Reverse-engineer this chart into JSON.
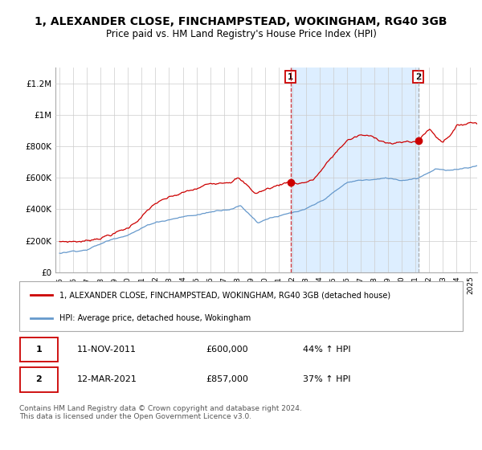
{
  "title": "1, ALEXANDER CLOSE, FINCHAMPSTEAD, WOKINGHAM, RG40 3GB",
  "subtitle": "Price paid vs. HM Land Registry's House Price Index (HPI)",
  "ylabel_ticks": [
    "£0",
    "£200K",
    "£400K",
    "£600K",
    "£800K",
    "£1M",
    "£1.2M"
  ],
  "ytick_values": [
    0,
    200000,
    400000,
    600000,
    800000,
    1000000,
    1200000
  ],
  "ylim": [
    0,
    1300000
  ],
  "xlim_start": 1994.7,
  "xlim_end": 2025.5,
  "sale1_date": 2011.87,
  "sale1_price": 600000,
  "sale1_label": "1",
  "sale1_display": "11-NOV-2011",
  "sale1_price_str": "£600,000",
  "sale1_hpi_str": "44% ↑ HPI",
  "sale2_date": 2021.19,
  "sale2_price": 857000,
  "sale2_label": "2",
  "sale2_display": "12-MAR-2021",
  "sale2_price_str": "£857,000",
  "sale2_hpi_str": "37% ↑ HPI",
  "legend_line1": "1, ALEXANDER CLOSE, FINCHAMPSTEAD, WOKINGHAM, RG40 3GB (detached house)",
  "legend_line2": "HPI: Average price, detached house, Wokingham",
  "footer": "Contains HM Land Registry data © Crown copyright and database right 2024.\nThis data is licensed under the Open Government Licence v3.0.",
  "line_color_red": "#cc0000",
  "line_color_blue": "#6699cc",
  "fill_color_blue": "#ddeeff",
  "background_color": "#ffffff",
  "grid_color": "#cccccc"
}
